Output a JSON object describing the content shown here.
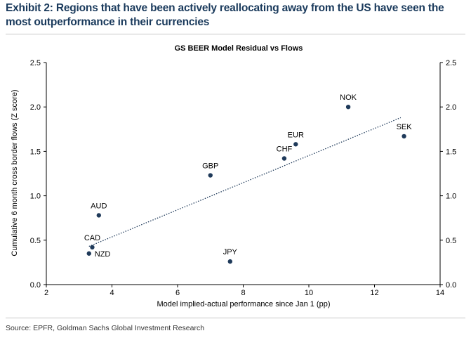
{
  "exhibit_title": "Exhibit 2: Regions that have been actively reallocating away from the US have seen the most outperformance in their currencies",
  "source": "Source: EPFR, Goldman Sachs Global Investment Research",
  "colors": {
    "title": "#1a3a5c",
    "point": "#1f3a5a",
    "trendline": "#1f3a5a"
  },
  "chart_data": {
    "type": "scatter",
    "title": "GS BEER Model Residual vs Flows",
    "xlabel": "Model implied-actual performance since Jan 1 (pp)",
    "ylabel": "Cumulative 6 month cross border flows (Z score)",
    "xlim": [
      2,
      14
    ],
    "ylim": [
      0,
      2.5
    ],
    "x_ticks": [
      2,
      4,
      6,
      8,
      10,
      12,
      14
    ],
    "y_ticks": [
      0.0,
      0.5,
      1.0,
      1.5,
      2.0,
      2.5
    ],
    "y_tick_labels": [
      "0.0",
      "0.5",
      "1.0",
      "1.5",
      "2.0",
      "2.5"
    ],
    "grid": false,
    "secondary_y_axis": true,
    "points": [
      {
        "label": "NOK",
        "x": 11.2,
        "y": 2.0
      },
      {
        "label": "SEK",
        "x": 12.9,
        "y": 1.67
      },
      {
        "label": "EUR",
        "x": 9.6,
        "y": 1.58
      },
      {
        "label": "CHF",
        "x": 9.25,
        "y": 1.42
      },
      {
        "label": "GBP",
        "x": 7.0,
        "y": 1.23
      },
      {
        "label": "AUD",
        "x": 3.6,
        "y": 0.78
      },
      {
        "label": "CAD",
        "x": 3.4,
        "y": 0.42
      },
      {
        "label": "NZD",
        "x": 3.3,
        "y": 0.35
      },
      {
        "label": "JPY",
        "x": 7.6,
        "y": 0.26
      }
    ],
    "trendline": {
      "style": "dotted",
      "from": {
        "x": 3.3,
        "y": 0.43
      },
      "to": {
        "x": 12.8,
        "y": 1.88
      }
    }
  }
}
